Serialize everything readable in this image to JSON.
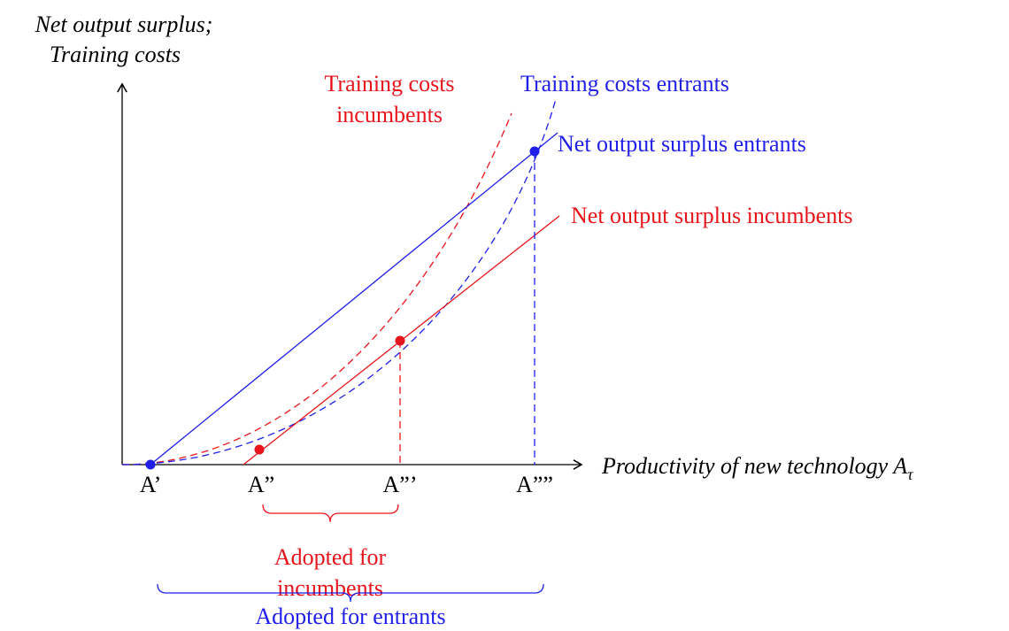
{
  "y_axis_label": [
    "Net output surplus;",
    "Training costs"
  ],
  "x_axis_label": {
    "text": "Productivity of new technology A",
    "subscript": "τ"
  },
  "x_ticks": [
    "A’",
    "A”",
    "A”’",
    "A””"
  ],
  "curves": {
    "training_costs_incumbents": [
      "Training costs",
      "incumbents"
    ],
    "training_costs_entrants": "Training costs entrants",
    "net_output_surplus_entrants": "Net output surplus entrants",
    "net_output_surplus_incumbents": "Net output surplus incumbents"
  },
  "braces": {
    "incumbents": [
      "Adopted for",
      "incumbents"
    ],
    "entrants": "Adopted for entrants"
  }
}
